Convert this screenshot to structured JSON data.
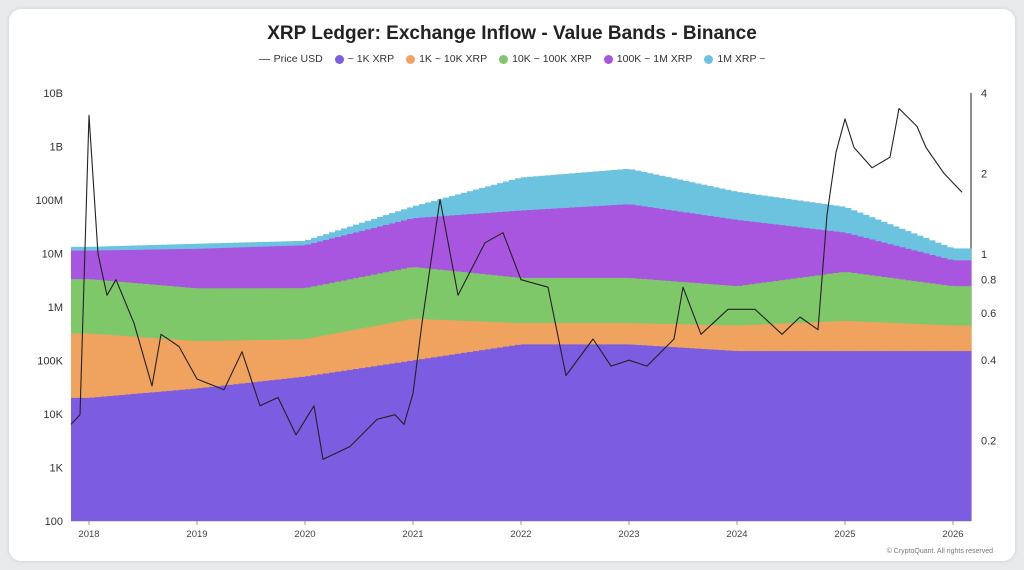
{
  "chart_data": {
    "type": "bar",
    "title": "XRP Ledger: Exchange Inflow - Value Bands - Binance",
    "credit": "© CryptoQuant. All rights reserved",
    "y_scale": "log",
    "y_ticks": [
      "100",
      "1K",
      "10K",
      "100K",
      "1M",
      "10M",
      "100M",
      "1B",
      "10B"
    ],
    "y_tick_values": [
      100,
      1000,
      10000,
      100000,
      1000000,
      10000000,
      100000000,
      1000000000,
      10000000000
    ],
    "y2_scale": "log",
    "y2_ticks": [
      "4",
      "2",
      "1",
      "0.8",
      "0.6",
      "0.4",
      "0.2"
    ],
    "y2_tick_values": [
      4,
      2,
      1,
      0.8,
      0.6,
      0.4,
      0.2
    ],
    "y2_range": [
      0.1,
      4
    ],
    "x_ticks": [
      "2018",
      "2019",
      "2020",
      "2021",
      "2022",
      "2023",
      "2024",
      "2025",
      "2026"
    ],
    "x_range": [
      "2017-11",
      "2026-03"
    ],
    "legend": "top-center",
    "grid": false,
    "series": [
      {
        "name": "Price USD",
        "kind": "line",
        "color": "#222222",
        "x": [
          "2017-11",
          "2017-12",
          "2018-01",
          "2018-02",
          "2018-03",
          "2018-04",
          "2018-06",
          "2018-08",
          "2018-09",
          "2018-11",
          "2019-01",
          "2019-04",
          "2019-06",
          "2019-08",
          "2019-10",
          "2019-12",
          "2020-02",
          "2020-03",
          "2020-06",
          "2020-09",
          "2020-11",
          "2020-12",
          "2021-01",
          "2021-02",
          "2021-04",
          "2021-06",
          "2021-09",
          "2021-11",
          "2022-01",
          "2022-04",
          "2022-06",
          "2022-09",
          "2022-11",
          "2023-01",
          "2023-03",
          "2023-06",
          "2023-07",
          "2023-09",
          "2023-12",
          "2024-03",
          "2024-06",
          "2024-08",
          "2024-10",
          "2024-11",
          "2024-12",
          "2025-01",
          "2025-02",
          "2025-04",
          "2025-06",
          "2025-07",
          "2025-09",
          "2025-10",
          "2025-12",
          "2026-02"
        ],
        "values": [
          0.23,
          0.25,
          3.3,
          1.0,
          0.7,
          0.8,
          0.55,
          0.32,
          0.5,
          0.45,
          0.34,
          0.31,
          0.43,
          0.27,
          0.29,
          0.21,
          0.27,
          0.17,
          0.19,
          0.24,
          0.25,
          0.23,
          0.3,
          0.55,
          1.6,
          0.7,
          1.1,
          1.2,
          0.8,
          0.75,
          0.35,
          0.48,
          0.38,
          0.4,
          0.38,
          0.48,
          0.75,
          0.5,
          0.62,
          0.62,
          0.5,
          0.58,
          0.52,
          1.4,
          2.4,
          3.2,
          2.5,
          2.1,
          2.3,
          3.5,
          3.0,
          2.5,
          2.0,
          1.7
        ]
      },
      {
        "name": "~ 1K XRP",
        "kind": "bar",
        "color": "#7c5ce0",
        "x": [
          "2018",
          "2019",
          "2020",
          "2021",
          "2022",
          "2023",
          "2024",
          "2025",
          "2026"
        ],
        "values": [
          20000,
          30000,
          50000,
          100000,
          200000,
          200000,
          150000,
          150000,
          150000
        ]
      },
      {
        "name": "1K ~ 10K XRP",
        "kind": "bar",
        "color": "#f0a35e",
        "x": [
          "2018",
          "2019",
          "2020",
          "2021",
          "2022",
          "2023",
          "2024",
          "2025",
          "2026"
        ],
        "values": [
          300000,
          200000,
          200000,
          500000,
          300000,
          300000,
          300000,
          400000,
          300000
        ]
      },
      {
        "name": "10K ~ 100K XRP",
        "kind": "bar",
        "color": "#7ec86a",
        "x": [
          "2018",
          "2019",
          "2020",
          "2021",
          "2022",
          "2023",
          "2024",
          "2025",
          "2026"
        ],
        "values": [
          3000000,
          2000000,
          2000000,
          5000000,
          3000000,
          3000000,
          2000000,
          4000000,
          2000000
        ]
      },
      {
        "name": "100K ~ 1M XRP",
        "kind": "bar",
        "color": "#a855e0",
        "x": [
          "2018",
          "2019",
          "2020",
          "2021",
          "2022",
          "2023",
          "2024",
          "2025",
          "2026"
        ],
        "values": [
          8000000,
          10000000,
          12000000,
          40000000,
          60000000,
          80000000,
          40000000,
          20000000,
          5000000
        ]
      },
      {
        "name": "1M XRP ~",
        "kind": "bar",
        "color": "#6cc3e0",
        "x": [
          "2018",
          "2019",
          "2020",
          "2021",
          "2022",
          "2023",
          "2024",
          "2025",
          "2026"
        ],
        "values": [
          2000000,
          3000000,
          3000000,
          30000000,
          200000000,
          300000000,
          100000000,
          50000000,
          5000000
        ]
      }
    ]
  }
}
